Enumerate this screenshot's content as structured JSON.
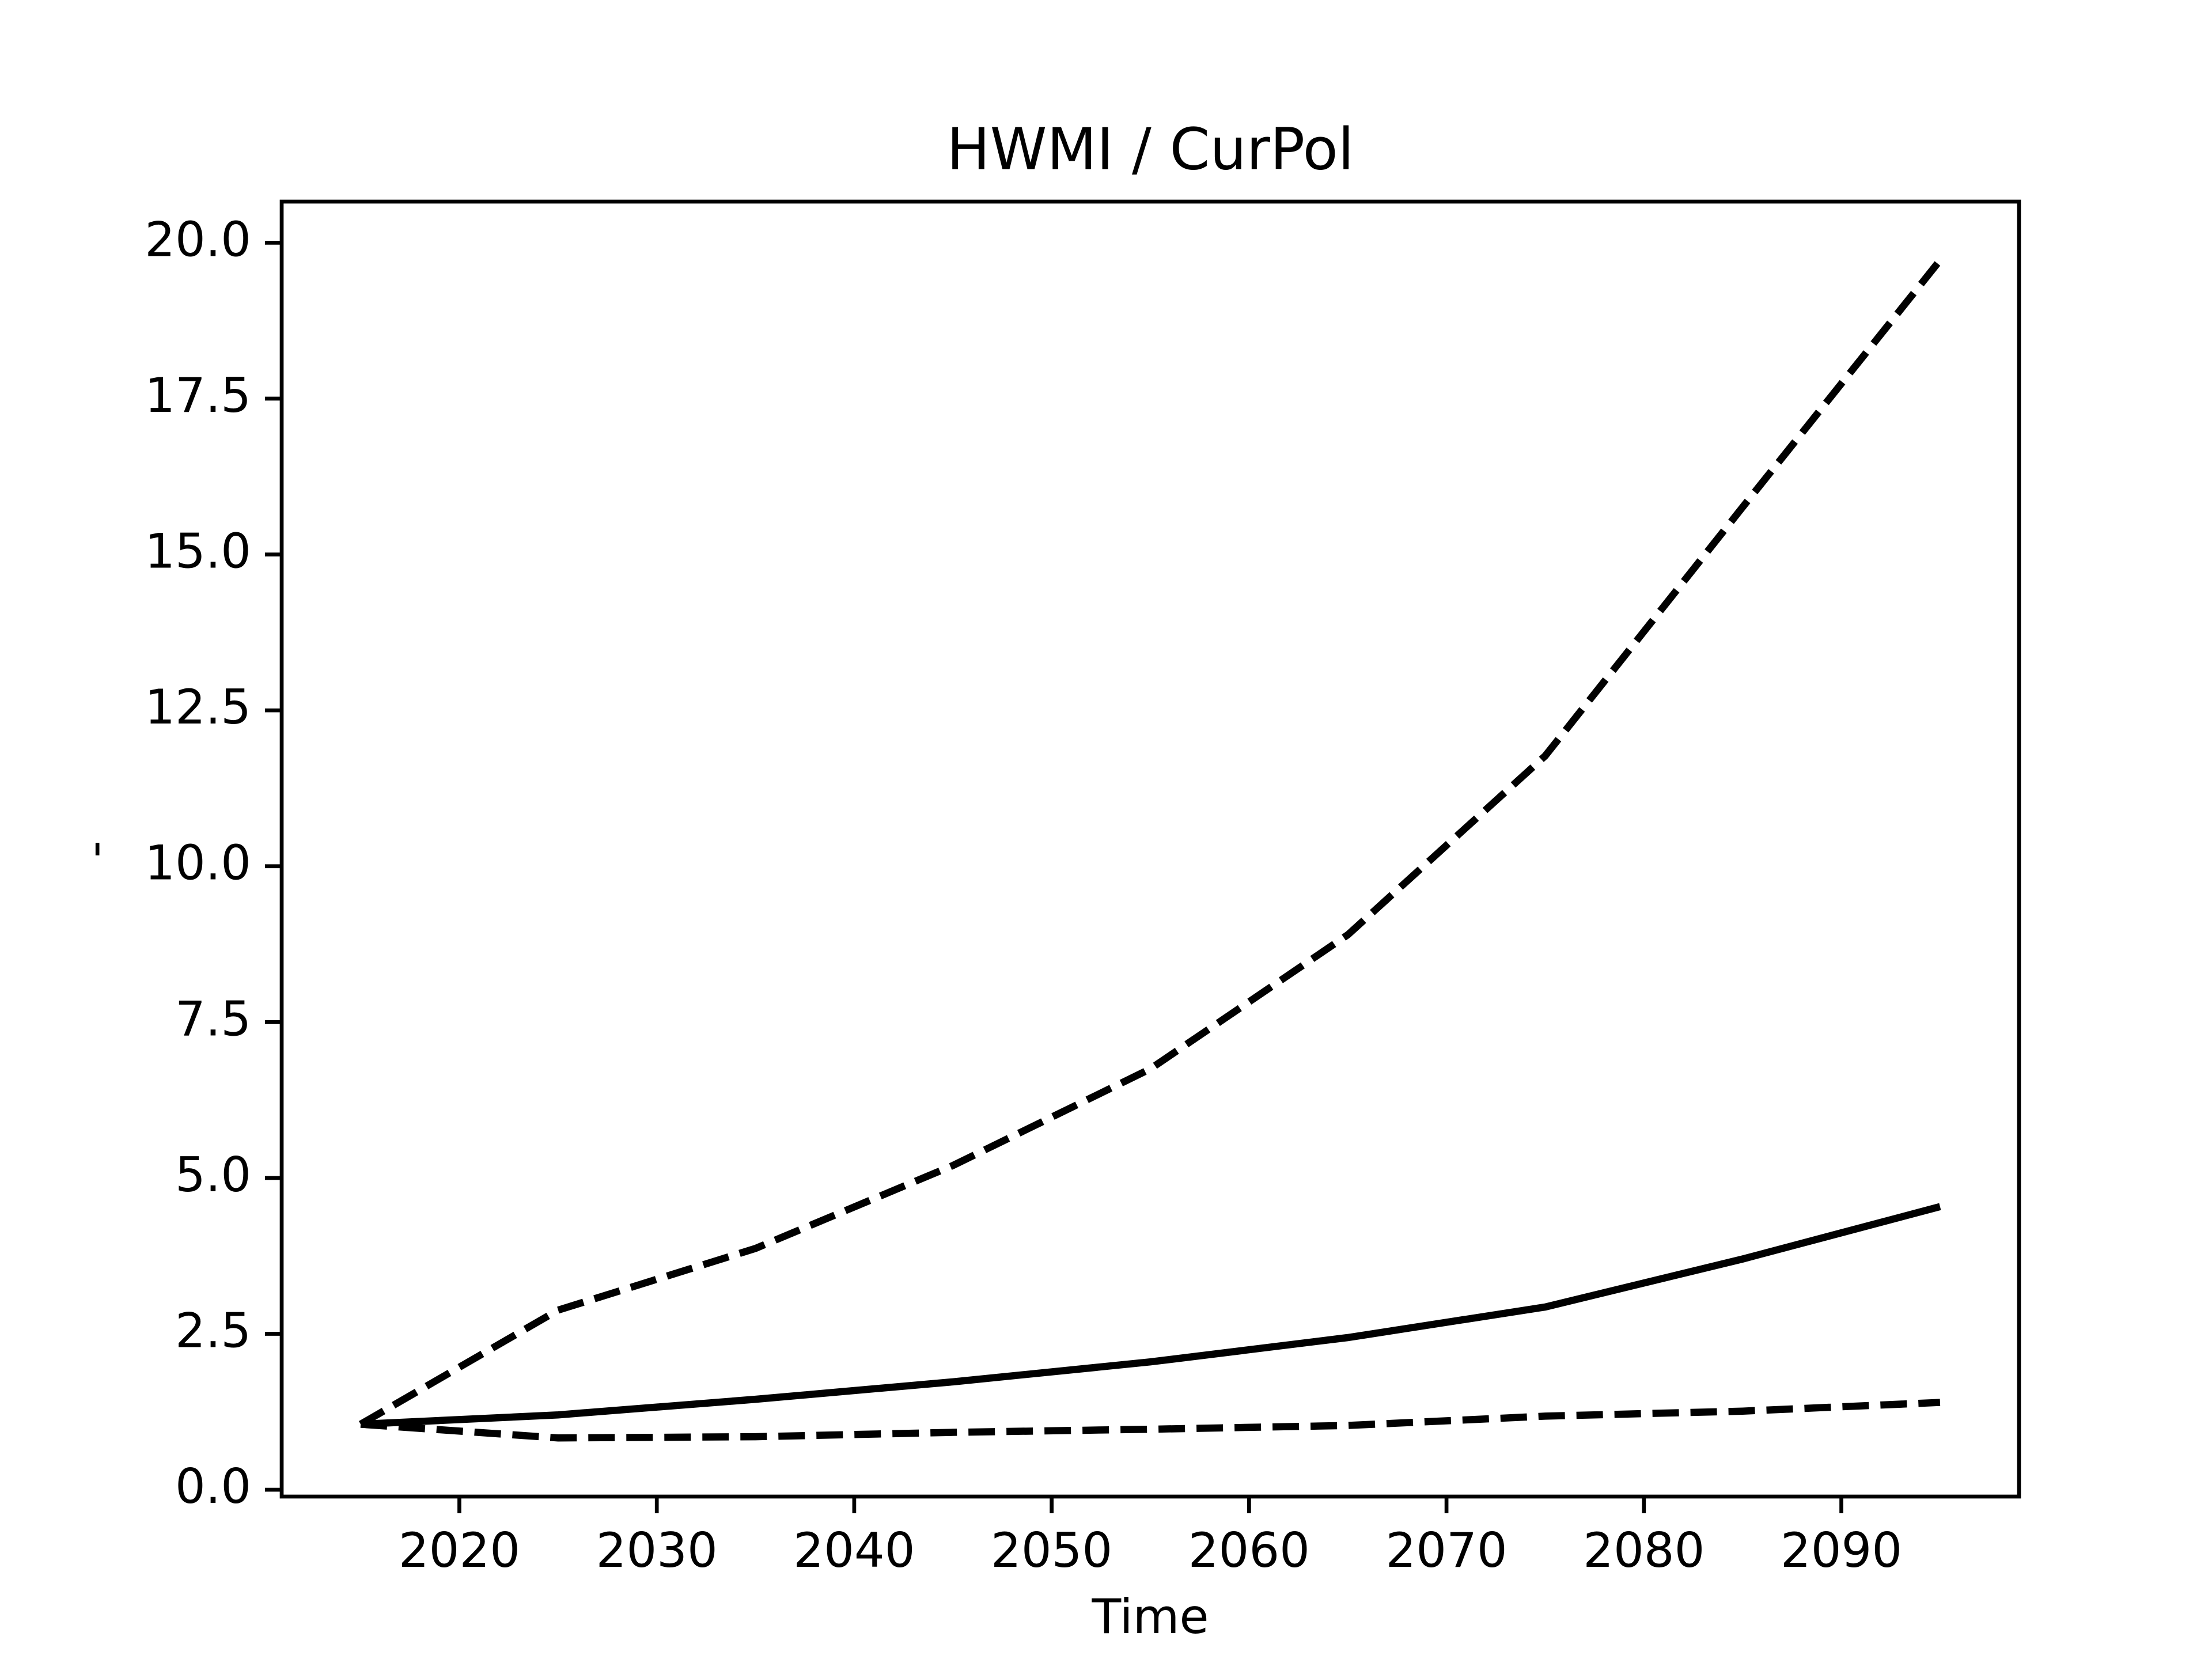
{
  "chart_data": {
    "type": "line",
    "title": "HWMI / CurPol",
    "xlabel": "Time",
    "ylabel": "-",
    "x": [
      2015,
      2025,
      2035,
      2045,
      2055,
      2065,
      2075,
      2085,
      2095
    ],
    "series": [
      {
        "color": "#000000",
        "linestyle": "dashed",
        "values": [
          1.05,
          2.88,
          3.87,
          5.2,
          6.75,
          8.9,
          11.77,
          15.76,
          19.72
        ]
      },
      {
        "color": "#000000",
        "linestyle": "solid",
        "values": [
          1.05,
          1.2,
          1.45,
          1.73,
          2.05,
          2.44,
          2.93,
          3.7,
          4.54
        ]
      },
      {
        "color": "#000000",
        "linestyle": "dashed",
        "values": [
          1.05,
          0.83,
          0.85,
          0.92,
          0.97,
          1.03,
          1.18,
          1.26,
          1.4
        ]
      }
    ],
    "xlim": [
      2011,
      2099
    ],
    "xticks": [
      2020,
      2030,
      2040,
      2050,
      2060,
      2070,
      2080,
      2090
    ],
    "ylim": [
      -0.11,
      20.66
    ],
    "yticks": [
      {
        "value": 0,
        "label": "0.0"
      },
      {
        "value": 2.5,
        "label": "2.5"
      },
      {
        "value": 5,
        "label": "5.0"
      },
      {
        "value": 7.5,
        "label": "7.5"
      },
      {
        "value": 10,
        "label": "10.0"
      },
      {
        "value": 12.5,
        "label": "12.5"
      },
      {
        "value": 15,
        "label": "15.0"
      },
      {
        "value": 17.5,
        "label": "17.5"
      },
      {
        "value": 20,
        "label": "20.0"
      }
    ],
    "grid": false
  }
}
